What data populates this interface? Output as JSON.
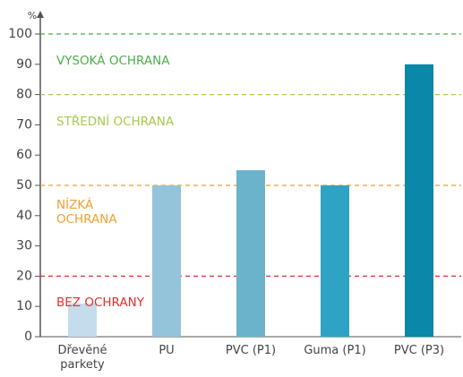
{
  "chart_data": {
    "type": "bar",
    "y_unit": "%",
    "categories": [
      "Dřevěné\nparkety",
      "PU",
      "PVC (P1)",
      "Guma (P1)",
      "PVC (P3)"
    ],
    "values": [
      11,
      50,
      55,
      50,
      90
    ],
    "colors": [
      "#c5dcec",
      "#93c4da",
      "#6bb3cb",
      "#2fa3c3",
      "#0a87a9"
    ],
    "ylim": [
      0,
      100
    ],
    "yticks": [
      0,
      10,
      20,
      30,
      40,
      50,
      60,
      70,
      80,
      90,
      100
    ],
    "zones": [
      {
        "label": "VYSOKÁ OCHRANA",
        "line": 100,
        "color": "#4cae4c"
      },
      {
        "label": "STŘEDNÍ OCHRANA",
        "line": 80,
        "color": "#a9c94b"
      },
      {
        "label": "NÍZKÁ\nOCHRANA",
        "line": 50,
        "color": "#f0a032"
      },
      {
        "label": "BEZ OCHRANY",
        "line": 20,
        "color": "#e0312f"
      }
    ]
  }
}
